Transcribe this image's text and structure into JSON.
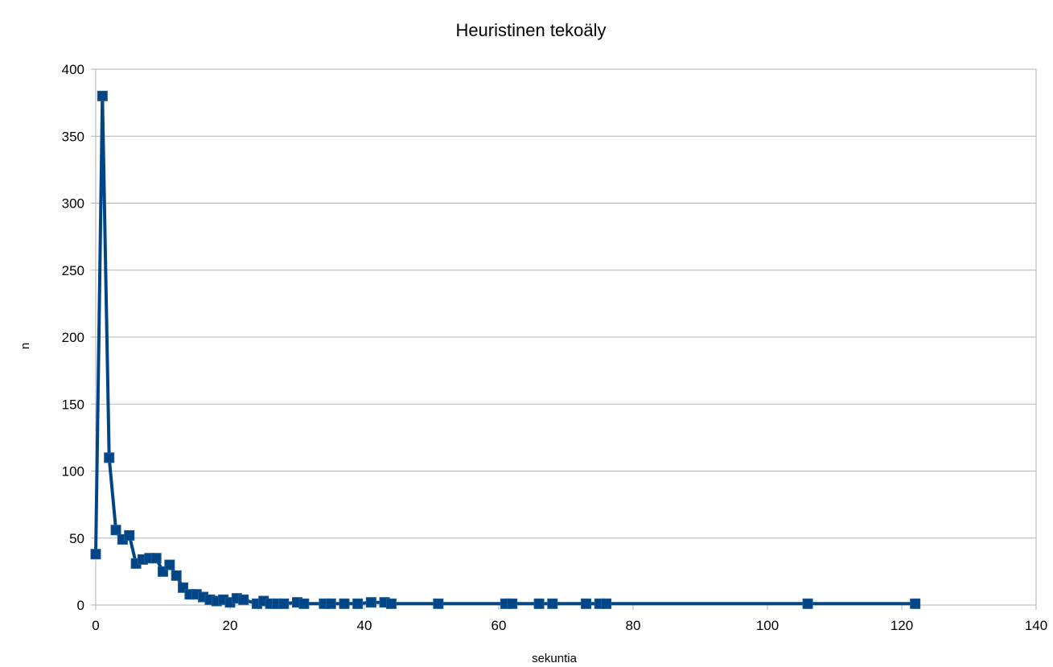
{
  "chart_data": {
    "type": "line",
    "title": "Heuristinen tekoäly",
    "xlabel": "sekuntia",
    "ylabel": "n",
    "xlim": [
      0,
      140
    ],
    "ylim": [
      0,
      400
    ],
    "x_ticks": [
      0,
      20,
      40,
      60,
      80,
      100,
      120,
      140
    ],
    "y_ticks": [
      0,
      50,
      100,
      150,
      200,
      250,
      300,
      350,
      400
    ],
    "grid": "horizontal",
    "legend": "none",
    "marker": "square",
    "color": "#004586",
    "series": [
      {
        "x": [
          0,
          1,
          2,
          3,
          4,
          5,
          6,
          7,
          8,
          9,
          10,
          11,
          12,
          13,
          14,
          15,
          16,
          17,
          18,
          19,
          20,
          21,
          22,
          24,
          25,
          26,
          27,
          28,
          30,
          31,
          34,
          35,
          37,
          39,
          41,
          43,
          44,
          51,
          61,
          62,
          66,
          68,
          73,
          75,
          76,
          106,
          122
        ],
        "y": [
          38,
          380,
          110,
          56,
          49,
          52,
          31,
          34,
          35,
          35,
          25,
          30,
          22,
          13,
          8,
          8,
          6,
          4,
          3,
          4,
          2,
          5,
          4,
          1,
          3,
          1,
          1,
          1,
          2,
          1,
          1,
          1,
          1,
          1,
          2,
          2,
          1,
          1,
          1,
          1,
          1,
          1,
          1,
          1,
          1,
          1,
          1
        ]
      }
    ]
  }
}
